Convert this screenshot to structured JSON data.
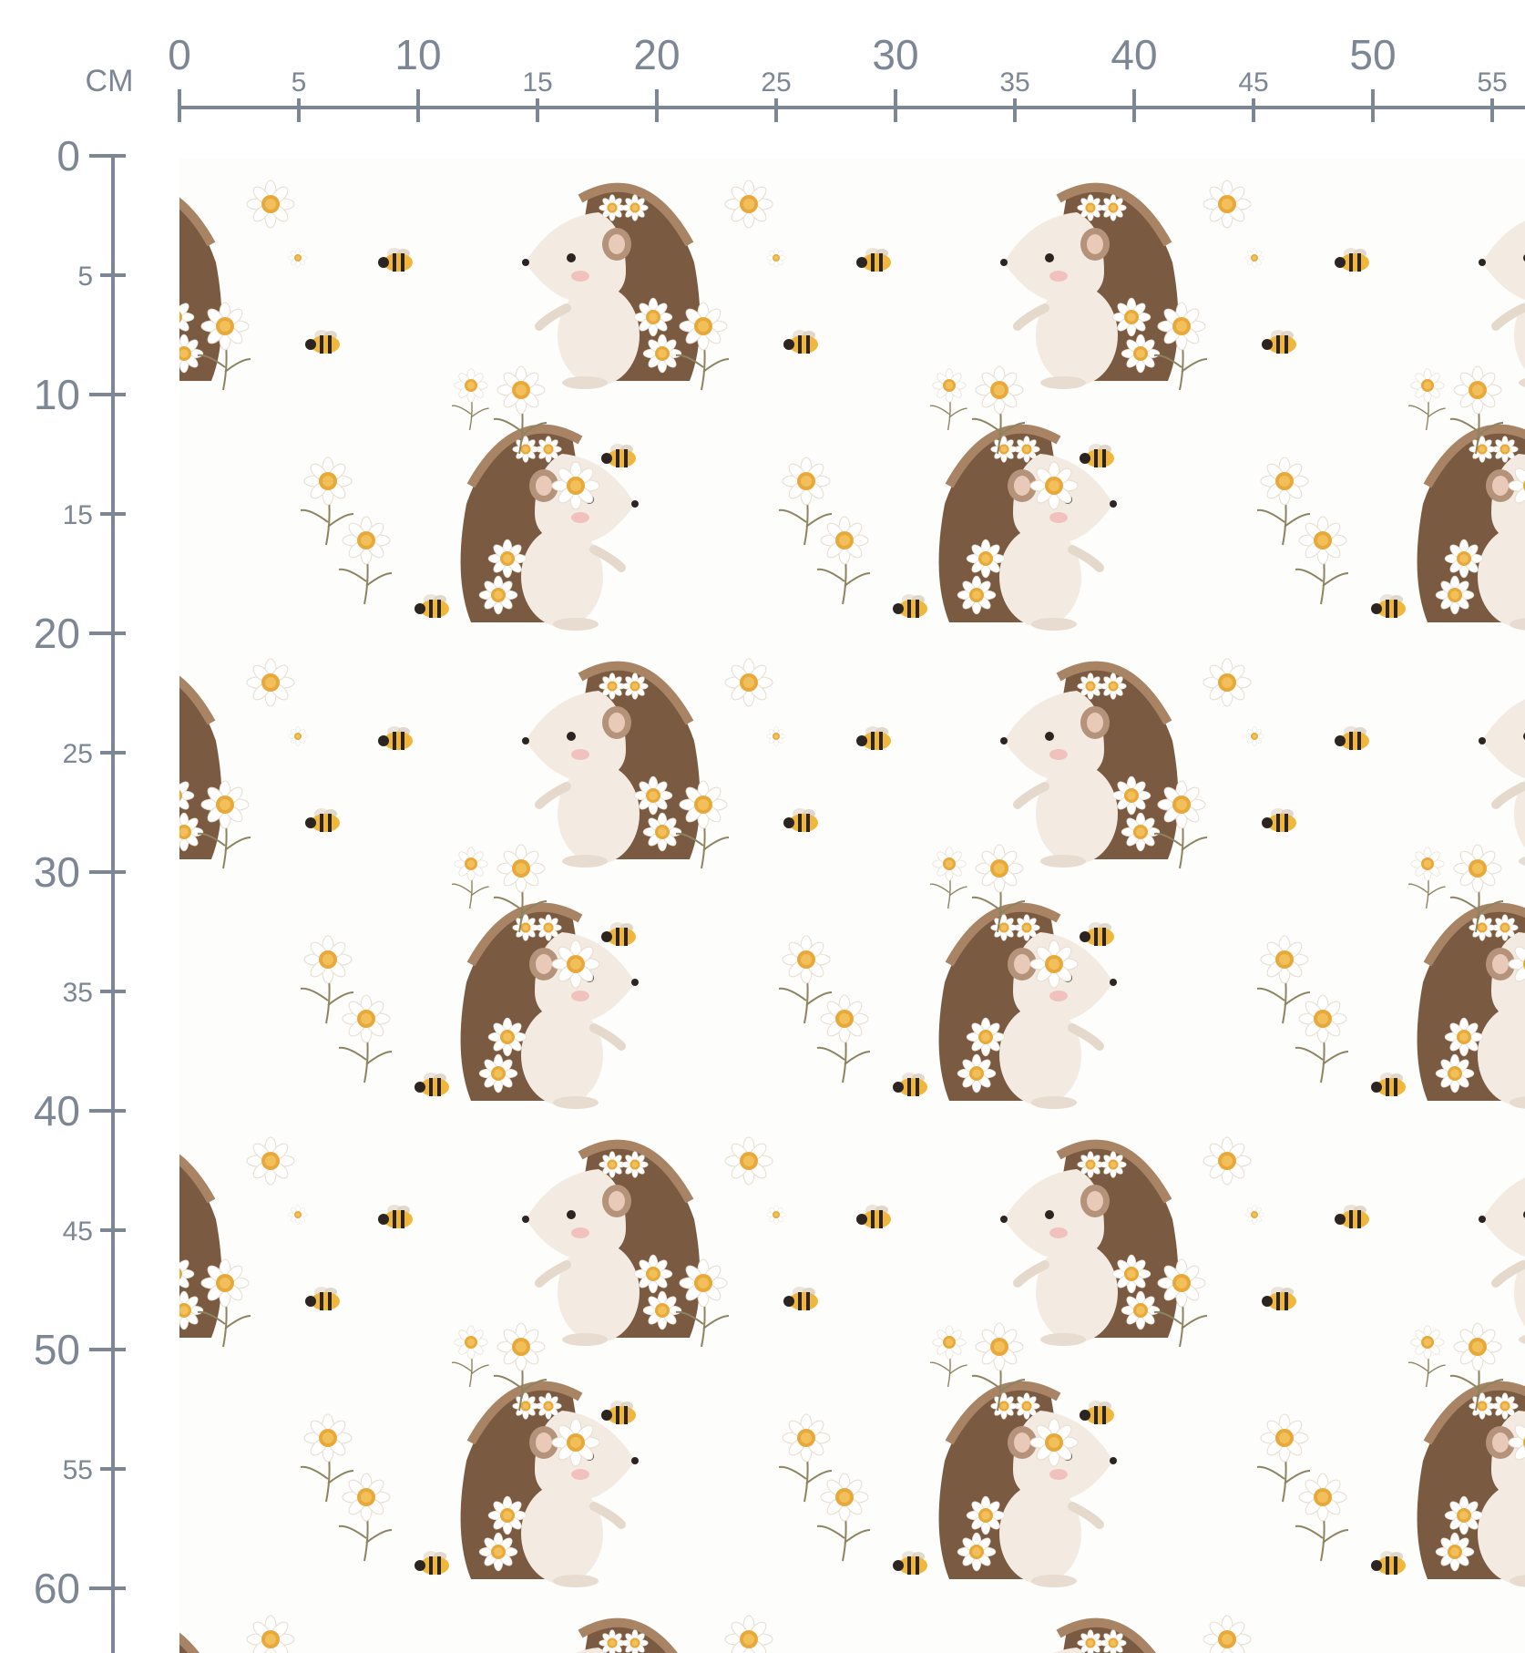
{
  "ruler": {
    "unit": "CM",
    "top": [
      0,
      5,
      10,
      15,
      20,
      25,
      30,
      35,
      40,
      45,
      50,
      55
    ],
    "left": [
      0,
      5,
      10,
      15,
      20,
      25,
      30,
      35,
      40,
      45,
      50,
      55,
      60
    ]
  }
}
